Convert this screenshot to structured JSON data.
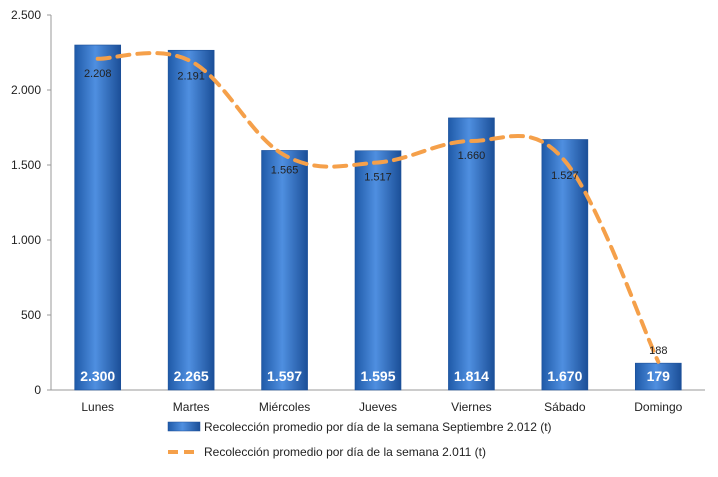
{
  "chart_data": {
    "type": "bar",
    "categories": [
      "Lunes",
      "Martes",
      "Miércoles",
      "Jueves",
      "Viernes",
      "Sábado",
      "Domingo"
    ],
    "series": [
      {
        "name": "Recolección promedio por día de la semana Septiembre 2.012 (t)",
        "type": "bar",
        "color": "#2f6fc1",
        "values": [
          2300,
          2265,
          1597,
          1595,
          1814,
          1670,
          179
        ],
        "value_labels": [
          "2.300",
          "2.265",
          "1.597",
          "1.595",
          "1.814",
          "1.670",
          "179"
        ]
      },
      {
        "name": "Recolección promedio por día de la semana 2.011 (t)",
        "type": "line",
        "style": "dashed",
        "color": "#f5a04a",
        "values": [
          2208,
          2191,
          1565,
          1517,
          1660,
          1527,
          188
        ],
        "value_labels": [
          "2.208",
          "2.191",
          "1.565",
          "1.517",
          "1.660",
          "1.527",
          "188"
        ]
      }
    ],
    "yticks": [
      0,
      500,
      1000,
      1500,
      2000,
      2500
    ],
    "ytick_labels": [
      "0",
      "500",
      "1.000",
      "1.500",
      "2.000",
      "2.500"
    ],
    "ylim": [
      0,
      2500
    ],
    "grid": false,
    "legend_position": "bottom"
  }
}
